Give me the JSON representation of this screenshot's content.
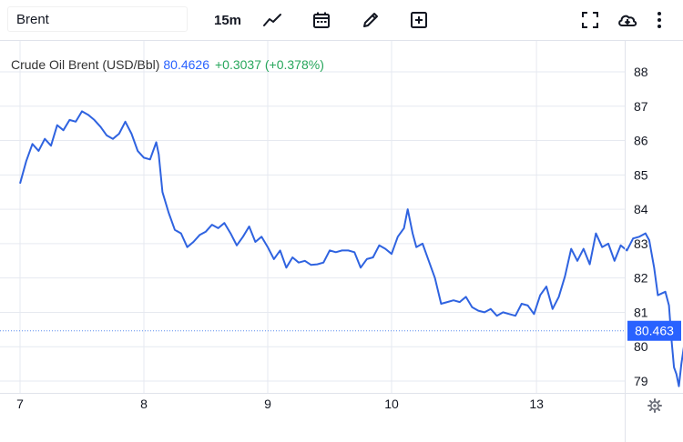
{
  "toolbar": {
    "symbol": "Brent",
    "interval": "15m",
    "icons": [
      "line-chart-icon",
      "calendar-icon",
      "pencil-icon",
      "add-box-icon",
      "fullscreen-icon",
      "cloud-download-icon",
      "more-vertical-icon"
    ]
  },
  "legend": {
    "name": "Crude Oil Brent (USD/Bbl)",
    "price": "80.4626",
    "change": "+0.3037 (+0.378%)"
  },
  "colors": {
    "line": "#2f63e0",
    "price_label_bg": "#2962ff",
    "change": "#26a65b",
    "grid": "#e6e9f0",
    "price_line": "#5b8def"
  },
  "chart_data": {
    "type": "line",
    "series": [
      {
        "values": [
          [
            0,
            84.75
          ],
          [
            0.05,
            85.4
          ],
          [
            0.1,
            85.9
          ],
          [
            0.15,
            85.7
          ],
          [
            0.2,
            86.05
          ],
          [
            0.25,
            85.85
          ],
          [
            0.3,
            86.45
          ],
          [
            0.35,
            86.3
          ],
          [
            0.4,
            86.6
          ],
          [
            0.45,
            86.55
          ],
          [
            0.5,
            86.85
          ],
          [
            0.55,
            86.75
          ],
          [
            0.6,
            86.6
          ],
          [
            0.65,
            86.4
          ],
          [
            0.7,
            86.15
          ],
          [
            0.75,
            86.05
          ],
          [
            0.8,
            86.2
          ],
          [
            0.85,
            86.55
          ],
          [
            0.9,
            86.2
          ],
          [
            0.95,
            85.7
          ],
          [
            1.0,
            85.5
          ],
          [
            1.05,
            85.45
          ],
          [
            1.1,
            85.95
          ],
          [
            1.12,
            85.6
          ],
          [
            1.15,
            84.5
          ],
          [
            1.2,
            83.9
          ],
          [
            1.25,
            83.4
          ],
          [
            1.3,
            83.3
          ],
          [
            1.35,
            82.9
          ],
          [
            1.4,
            83.05
          ],
          [
            1.45,
            83.25
          ],
          [
            1.5,
            83.35
          ],
          [
            1.55,
            83.55
          ],
          [
            1.6,
            83.45
          ],
          [
            1.65,
            83.6
          ],
          [
            1.7,
            83.3
          ],
          [
            1.75,
            82.95
          ],
          [
            1.8,
            83.2
          ],
          [
            1.85,
            83.5
          ],
          [
            1.9,
            83.05
          ],
          [
            1.95,
            83.2
          ],
          [
            2.0,
            82.9
          ],
          [
            2.05,
            82.55
          ],
          [
            2.1,
            82.8
          ],
          [
            2.15,
            82.3
          ],
          [
            2.2,
            82.6
          ],
          [
            2.25,
            82.45
          ],
          [
            2.3,
            82.5
          ],
          [
            2.35,
            82.38
          ],
          [
            2.4,
            82.4
          ],
          [
            2.45,
            82.45
          ],
          [
            2.5,
            82.8
          ],
          [
            2.55,
            82.75
          ],
          [
            2.6,
            82.8
          ],
          [
            2.65,
            82.8
          ],
          [
            2.7,
            82.75
          ],
          [
            2.75,
            82.3
          ],
          [
            2.8,
            82.55
          ],
          [
            2.85,
            82.6
          ],
          [
            2.9,
            82.95
          ],
          [
            2.95,
            82.85
          ],
          [
            3.0,
            82.7
          ],
          [
            3.05,
            83.2
          ],
          [
            3.1,
            83.45
          ],
          [
            3.13,
            84.0
          ],
          [
            3.17,
            83.3
          ],
          [
            3.2,
            82.9
          ],
          [
            3.25,
            83.0
          ],
          [
            3.3,
            82.5
          ],
          [
            3.35,
            82.0
          ],
          [
            3.4,
            81.25
          ],
          [
            3.45,
            81.3
          ],
          [
            3.5,
            81.35
          ],
          [
            3.55,
            81.3
          ],
          [
            3.6,
            81.45
          ],
          [
            3.65,
            81.15
          ],
          [
            3.7,
            81.05
          ],
          [
            3.75,
            81.0
          ],
          [
            3.8,
            81.1
          ],
          [
            3.85,
            80.9
          ],
          [
            3.9,
            81.0
          ],
          [
            3.95,
            80.95
          ],
          [
            4.0,
            80.9
          ],
          [
            4.05,
            81.25
          ],
          [
            4.1,
            81.2
          ],
          [
            4.15,
            80.95
          ],
          [
            4.2,
            81.5
          ],
          [
            4.25,
            81.75
          ],
          [
            4.3,
            81.1
          ],
          [
            4.35,
            81.45
          ],
          [
            4.4,
            82.05
          ],
          [
            4.45,
            82.85
          ],
          [
            4.5,
            82.5
          ],
          [
            4.55,
            82.85
          ],
          [
            4.6,
            82.4
          ],
          [
            4.65,
            83.3
          ],
          [
            4.7,
            82.9
          ],
          [
            4.75,
            83.0
          ],
          [
            4.8,
            82.5
          ],
          [
            4.85,
            82.95
          ],
          [
            4.9,
            82.8
          ],
          [
            4.95,
            83.15
          ],
          [
            5.0,
            83.2
          ],
          [
            5.05,
            83.3
          ],
          [
            5.08,
            83.1
          ],
          [
            5.12,
            82.3
          ],
          [
            5.15,
            81.5
          ],
          [
            5.18,
            81.55
          ],
          [
            5.21,
            81.6
          ],
          [
            5.24,
            81.2
          ],
          [
            5.26,
            80.2
          ],
          [
            5.28,
            79.4
          ],
          [
            5.3,
            79.2
          ],
          [
            5.32,
            78.85
          ],
          [
            5.34,
            79.5
          ],
          [
            5.36,
            80.0
          ],
          [
            5.38,
            80.46
          ]
        ]
      }
    ],
    "x_tick_labels": [
      "7",
      "8",
      "9",
      "10",
      "13"
    ],
    "y_tick_labels": [
      "79",
      "80",
      "81",
      "82",
      "83",
      "84",
      "85",
      "86",
      "87",
      "88"
    ],
    "ylim": [
      78.5,
      88.5
    ],
    "last_value_label": "80.463",
    "grid": true,
    "y_axis_side": "right"
  }
}
